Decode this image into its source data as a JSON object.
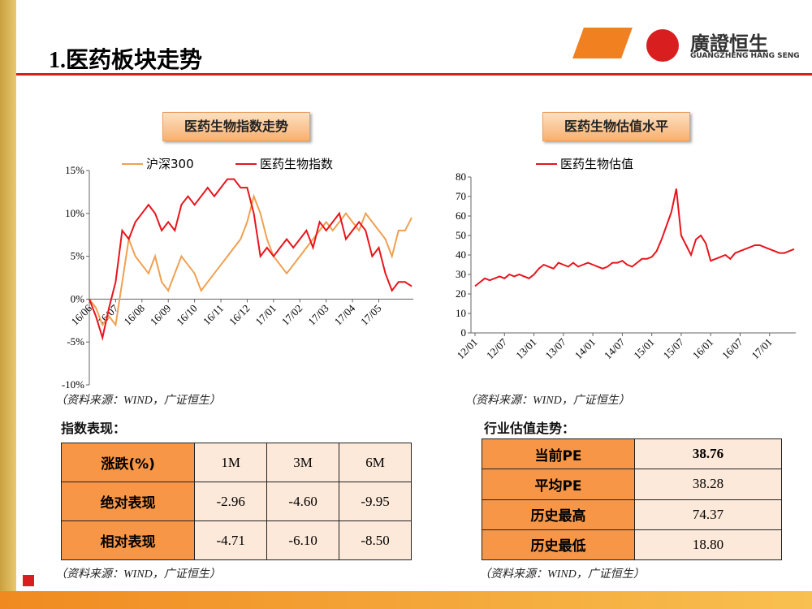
{
  "slide": {
    "title": "1.医药板块走势",
    "logo_name": "廣證恒生",
    "logo_sub": "GUANGZHENG HANG SENG",
    "box_left": "医药生物指数走势",
    "box_right": "医药生物估值水平",
    "source_1": "（资料来源：WIND，广证恒生）",
    "source_2": "（资料来源：WIND，广证恒生）",
    "source_3": "（资料来源：WIND，广证恒生）",
    "source_4": "（资料来源：WIND，广证恒生）",
    "sub_left": "指数表现：",
    "sub_right": "行业估值走势："
  },
  "chart_data": [
    {
      "type": "line",
      "categories": [
        "16/06",
        null,
        null,
        null,
        "16/07",
        null,
        null,
        null,
        "16/08",
        null,
        null,
        null,
        "16/09",
        null,
        null,
        null,
        "16/10",
        null,
        null,
        null,
        "16/11",
        null,
        null,
        null,
        "16/12",
        null,
        null,
        null,
        "17/01",
        null,
        null,
        null,
        "17/02",
        null,
        null,
        null,
        "17/03",
        null,
        null,
        null,
        "17/04",
        null,
        null,
        null,
        "17/05",
        null,
        null,
        null,
        null,
        null
      ],
      "series": [
        {
          "name": "沪深300",
          "color": "#f0a050",
          "values": [
            0,
            -1,
            -3,
            -2,
            -3,
            2,
            7,
            5,
            4,
            3,
            5,
            2,
            1,
            3,
            5,
            4,
            3,
            1,
            2,
            3,
            4,
            5,
            6,
            7,
            9,
            12,
            10,
            7,
            5,
            4,
            3,
            4,
            5,
            6,
            7,
            8,
            9,
            8,
            9,
            10,
            9,
            8,
            10,
            9,
            8,
            7,
            5,
            8,
            8,
            9.5
          ]
        },
        {
          "name": "医药生物指数",
          "color": "#e8141c",
          "values": [
            0,
            -2,
            -4.5,
            -1,
            2,
            8,
            7,
            9,
            10,
            11,
            10,
            8,
            9,
            8,
            11,
            12,
            11,
            12,
            13,
            12,
            13,
            14,
            14,
            13,
            13,
            10,
            5,
            6,
            5,
            6,
            7,
            6,
            7,
            8,
            6,
            9,
            8,
            9,
            10,
            7,
            8,
            9,
            8,
            5,
            6,
            3,
            1,
            2,
            2,
            1.5
          ]
        }
      ],
      "ylim": [
        -10,
        15
      ],
      "yticks": [
        {
          "value": -10,
          "label": "-10%"
        },
        {
          "value": -5,
          "label": "-5%"
        },
        {
          "value": 0,
          "label": "0%"
        },
        {
          "value": 5,
          "label": "5%"
        },
        {
          "value": 10,
          "label": "10%"
        },
        {
          "value": 15,
          "label": "15%"
        }
      ],
      "legend": "top"
    },
    {
      "type": "line",
      "categories": [
        "12/01",
        null,
        null,
        null,
        null,
        null,
        "12/07",
        null,
        null,
        null,
        null,
        null,
        "13/01",
        null,
        null,
        null,
        null,
        null,
        "13/07",
        null,
        null,
        null,
        null,
        null,
        "14/01",
        null,
        null,
        null,
        null,
        null,
        "14/07",
        null,
        null,
        null,
        null,
        null,
        "15/01",
        null,
        null,
        null,
        null,
        null,
        "15/07",
        null,
        null,
        null,
        null,
        null,
        "16/01",
        null,
        null,
        null,
        null,
        null,
        "16/07",
        null,
        null,
        null,
        null,
        null,
        "17/01",
        null,
        null,
        null,
        null,
        null
      ],
      "series": [
        {
          "name": "医药生物估值",
          "color": "#e8141c",
          "values": [
            24,
            26,
            28,
            27,
            28,
            29,
            28,
            30,
            29,
            30,
            29,
            28,
            30,
            33,
            35,
            34,
            33,
            36,
            35,
            34,
            36,
            34,
            35,
            36,
            35,
            34,
            33,
            34,
            36,
            36,
            37,
            35,
            34,
            36,
            38,
            38,
            39,
            42,
            48,
            55,
            62,
            74,
            50,
            45,
            40,
            48,
            50,
            46,
            37,
            38,
            39,
            40,
            38,
            41,
            42,
            43,
            44,
            45,
            45,
            44,
            43,
            42,
            41,
            41,
            42,
            43
          ]
        }
      ],
      "ylim": [
        0,
        80
      ],
      "yticks": [
        0,
        10,
        20,
        30,
        40,
        50,
        60,
        70,
        80
      ],
      "legend": "top"
    }
  ],
  "index_table": {
    "header": [
      "涨跌(%)",
      "1M",
      "3M",
      "6M"
    ],
    "rows": [
      [
        "绝对表现",
        "-2.96",
        "-4.60",
        "-9.95"
      ],
      [
        "相对表现",
        "-4.71",
        "-6.10",
        "-8.50"
      ]
    ]
  },
  "valuation_table": {
    "rows": [
      [
        "当前PE",
        "38.76"
      ],
      [
        "平均PE",
        "38.28"
      ],
      [
        "历史最高",
        "74.37"
      ],
      [
        "历史最低",
        "18.80"
      ]
    ]
  }
}
